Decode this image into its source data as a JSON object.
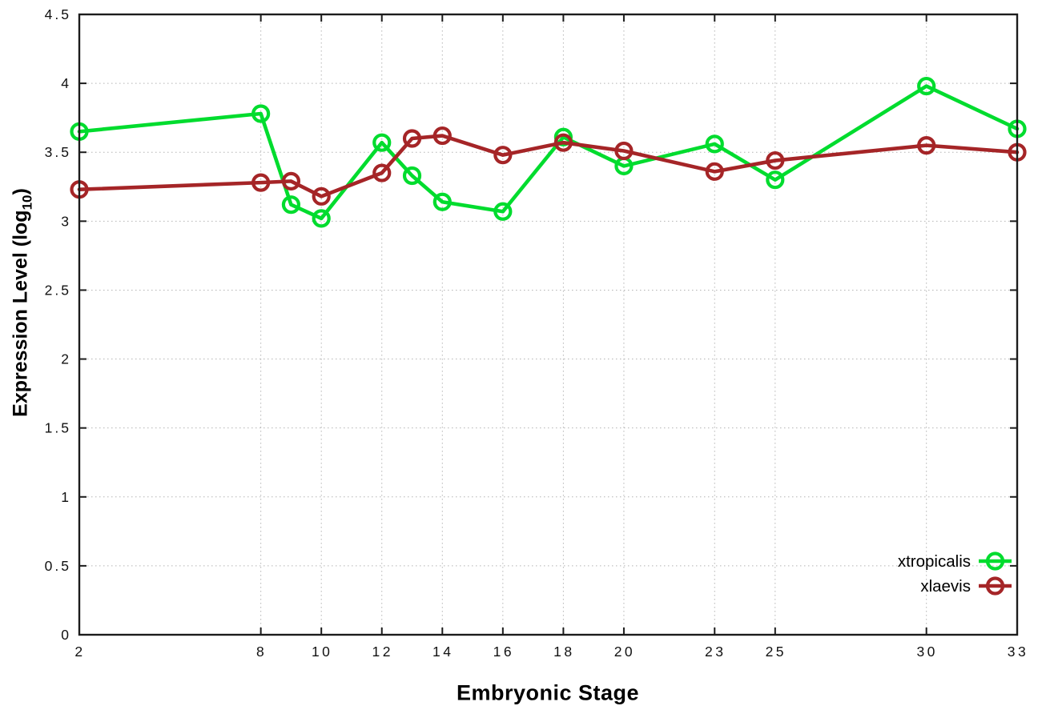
{
  "figure": {
    "background": "#ffffff",
    "xlabel": "Embryonic Stage",
    "ylabel_prefix": "Expression Level (log",
    "ylabel_sub": "10",
    "ylabel_suffix": ")"
  },
  "chart_data": {
    "type": "line",
    "title": "",
    "xlabel": "Embryonic Stage",
    "ylabel": "Expression Level (log10)",
    "x": [
      2,
      8,
      9,
      10,
      12,
      13,
      14,
      16,
      18,
      20,
      23,
      25,
      30,
      33
    ],
    "series": [
      {
        "name": "xtropicalis",
        "color": "#00dc2e",
        "values": [
          3.65,
          3.78,
          3.12,
          3.02,
          3.57,
          3.33,
          3.14,
          3.07,
          3.61,
          3.4,
          3.56,
          3.3,
          3.98,
          3.67
        ]
      },
      {
        "name": "xlaevis",
        "color": "#a52527",
        "values": [
          3.23,
          3.28,
          3.29,
          3.18,
          3.35,
          3.6,
          3.62,
          3.48,
          3.57,
          3.51,
          3.36,
          3.44,
          3.55,
          3.5
        ]
      }
    ],
    "xticks": [
      2,
      8,
      10,
      12,
      14,
      16,
      18,
      20,
      23,
      25,
      30,
      33
    ],
    "yticks": [
      0,
      0.5,
      1,
      1.5,
      2,
      2.5,
      3,
      3.5,
      4,
      4.5
    ],
    "xlim": [
      2,
      33
    ],
    "ylim": [
      0,
      4.5
    ],
    "grid": true,
    "grid_color": "#b4b4b4",
    "axis_color": "#1c1c1c",
    "tick_label_color": "#111111",
    "marker": "open-circle",
    "legend_position": "bottom-right"
  },
  "legend": {
    "entries": [
      "xtropicalis",
      "xlaevis"
    ]
  }
}
